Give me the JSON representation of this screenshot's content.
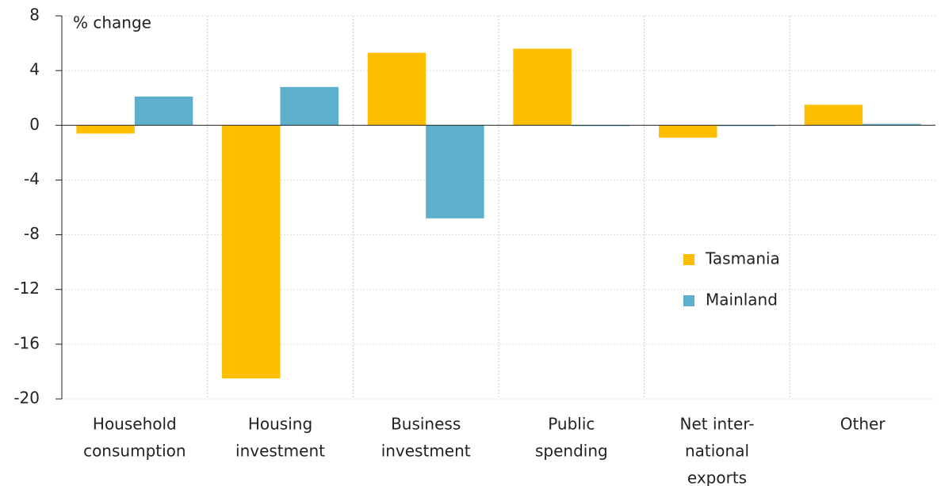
{
  "chart_data": {
    "type": "bar",
    "y_label": "% change",
    "categories": [
      [
        "Household",
        "consumption"
      ],
      [
        "Housing",
        "investment"
      ],
      [
        "Business",
        "investment"
      ],
      [
        "Public",
        "spending"
      ],
      [
        "Net inter-",
        "national",
        "exports"
      ],
      [
        "Other"
      ]
    ],
    "series": [
      {
        "name": "Tasmania",
        "color": "#fdbe00",
        "values": [
          -0.6,
          -18.5,
          5.3,
          5.6,
          -0.9,
          1.5
        ]
      },
      {
        "name": "Mainland",
        "color": "#5eafcc",
        "values": [
          2.1,
          2.8,
          -6.8,
          0,
          0,
          0.1
        ]
      }
    ],
    "ylim": [
      -20,
      8
    ],
    "yticks": [
      -20,
      -16,
      -12,
      -8,
      -4,
      0,
      4,
      8
    ],
    "grid": true,
    "legend": "right"
  }
}
